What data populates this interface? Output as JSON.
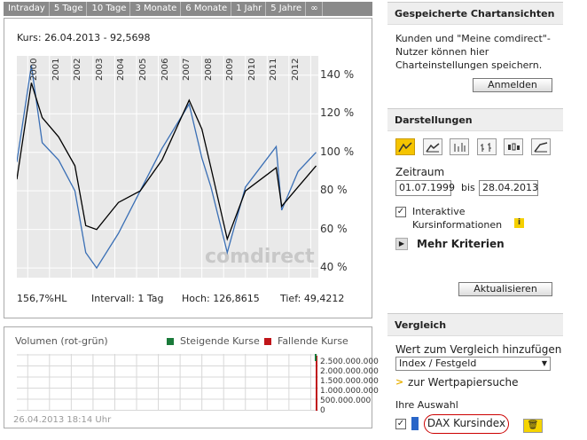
{
  "tabs": [
    "Intraday",
    "5 Tage",
    "10 Tage",
    "3 Monate",
    "6 Monate",
    "1 Jahr",
    "5 Jahre",
    "∞"
  ],
  "chart": {
    "kurs": "Kurs: 26.04.2013 - 92,5698",
    "watermark": "comdirect",
    "y_ticks": [
      "140 %",
      "120 %",
      "100 %",
      "80 %",
      "60 %",
      "40 %"
    ],
    "x_ticks": [
      "2000",
      "2001",
      "2002",
      "2003",
      "2004",
      "2005",
      "2006",
      "2007",
      "2008",
      "2009",
      "2010",
      "2011",
      "2012"
    ],
    "hl": "156,7%HL",
    "intervall": "Intervall: 1 Tag",
    "hoch": "Hoch: 126,8615",
    "tief": "Tief: 49,4212"
  },
  "chart_data": {
    "type": "line",
    "x": [
      "1999-07",
      "2000-03",
      "2000-09",
      "2001-06",
      "2002-03",
      "2002-09",
      "2003-03",
      "2004-03",
      "2005-03",
      "2006-03",
      "2007-06",
      "2008-01",
      "2008-06",
      "2009-03",
      "2010-01",
      "2011-06",
      "2011-09",
      "2012-06",
      "2013-04"
    ],
    "series": [
      {
        "name": "",
        "color": "#000000",
        "values": [
          86,
          136,
          118,
          108,
          93,
          62,
          60,
          74,
          80,
          96,
          127,
          112,
          92,
          55,
          80,
          92,
          72,
          82,
          93
        ]
      },
      {
        "name": "",
        "color": "#3a6fb5",
        "values": [
          95,
          145,
          105,
          96,
          80,
          48,
          40,
          58,
          80,
          102,
          125,
          97,
          82,
          48,
          82,
          103,
          70,
          90,
          100
        ]
      }
    ],
    "ylim": [
      35,
      150
    ],
    "y_unit": "%"
  },
  "volume": {
    "title": "Volumen (rot-grün)",
    "legend_up": "Steigende Kurse",
    "legend_down": "Fallende Kurse",
    "up_color": "#1a7a3a",
    "down_color": "#c0151a",
    "ticks": [
      "2.500.000.000",
      "2.000.000.000",
      "1.500.000.000",
      "1.000.000.000",
      "500.000.000",
      "0"
    ],
    "timestamp": "26.04.2013 18:14 Uhr"
  },
  "sidebar": {
    "saved_title": "Gespeicherte Chartansichten",
    "saved_text": "Kunden und \"Meine comdirect\"-Nutzer können hier Charteinstellungen speichern.",
    "login_btn": "Anmelden",
    "darst_title": "Darstellungen",
    "zeitraum_label": "Zeitraum",
    "from": "01.07.1999",
    "bis": "bis",
    "to": "28.04.2013",
    "interaktive": "Interaktive Kursinformationen",
    "mehr": "Mehr Kriterien",
    "update_btn": "Aktualisieren",
    "vergleich_title": "Vergleich",
    "add_label": "Wert zum Vergleich hinzufügen",
    "select_value": "Index / Festgeld",
    "search_link": "zur Wertpapiersuche",
    "ihre_auswahl": "Ihre Auswahl",
    "dax": "DAX Kursindex"
  }
}
